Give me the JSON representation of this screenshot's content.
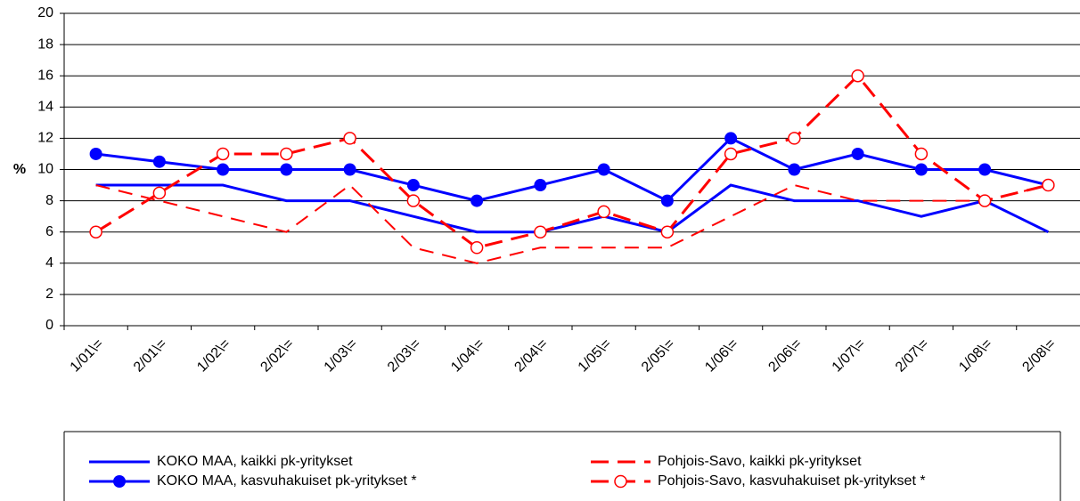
{
  "chart_data": {
    "type": "line",
    "ylabel": "%",
    "categories": [
      "1/01\\=",
      "2/01\\=",
      "1/02\\=",
      "2/02\\=",
      "1/03\\=",
      "2/03\\=",
      "1/04\\=",
      "2/04\\=",
      "1/05\\=",
      "2/05\\=",
      "1/06\\=",
      "2/06\\=",
      "1/07\\=",
      "2/07\\=",
      "1/08\\=",
      "2/08\\="
    ],
    "series": [
      {
        "name": "KOKO MAA, kaikki pk-yritykset",
        "color": "#0000ff",
        "dashed": false,
        "marker": "none",
        "values": [
          9,
          9,
          9,
          8,
          8,
          7,
          6,
          6,
          7,
          6,
          9,
          8,
          8,
          7,
          8,
          6
        ]
      },
      {
        "name": "Pohjois-Savo, kaikki pk-yritykset",
        "color": "#ff0000",
        "dashed": true,
        "marker": "none",
        "values": [
          9,
          8,
          7,
          6,
          9,
          5,
          4,
          5,
          5,
          5,
          7,
          9,
          8,
          8,
          8,
          9
        ]
      },
      {
        "name": "KOKO MAA, kasvuhakuiset pk-yritykset *",
        "color": "#0000ff",
        "dashed": false,
        "marker": "filled-circle",
        "values": [
          11,
          10.5,
          10,
          10,
          10,
          9,
          8,
          9,
          10,
          8,
          12,
          10,
          11,
          10,
          10,
          9
        ]
      },
      {
        "name": "Pohjois-Savo, kasvuhakuiset pk-yritykset *",
        "color": "#ff0000",
        "dashed": true,
        "marker": "open-circle",
        "values": [
          6,
          8.5,
          11,
          11,
          12,
          8,
          5,
          6,
          7.3,
          6,
          11,
          12,
          16,
          11,
          8,
          9
        ]
      }
    ],
    "ylim": [
      0,
      20
    ],
    "yticks": [
      0,
      2,
      4,
      6,
      8,
      10,
      12,
      14,
      16,
      18,
      20
    ],
    "grid": true
  }
}
